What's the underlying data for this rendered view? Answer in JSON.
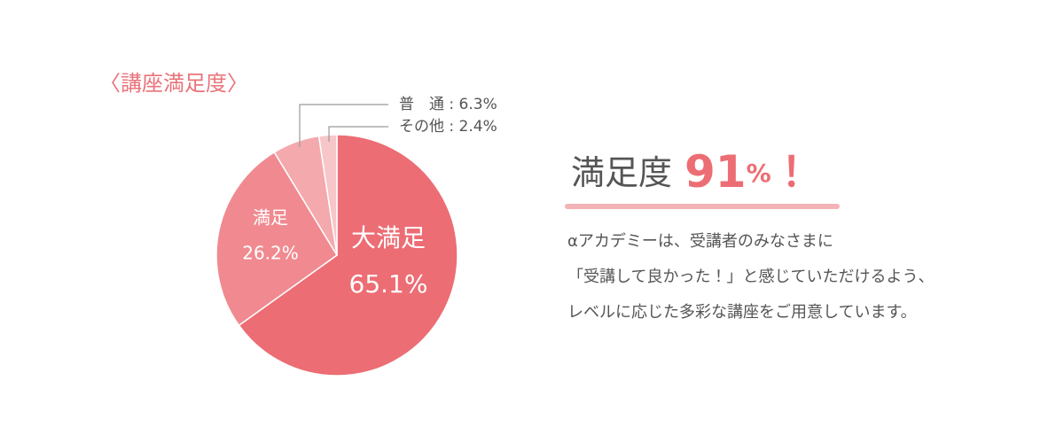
{
  "chart_data": {
    "type": "pie",
    "title": "〈講座満足度〉",
    "categories": [
      "大満足",
      "満足",
      "普　通",
      "その他"
    ],
    "values": [
      65.1,
      26.2,
      6.3,
      2.4
    ],
    "value_labels": [
      "65.1%",
      "26.2%",
      "6.3%",
      "2.4%"
    ],
    "label_separator": ":",
    "colors": [
      "#ec6d74",
      "#f08a90",
      "#f4a9ad",
      "#f7c6c9"
    ]
  },
  "summary": {
    "heading": "満足度",
    "value": 91,
    "unit": "%",
    "exclamation": "！",
    "lines": [
      "αアカデミーは、受講者のみなさまに",
      "「受講して良かった！」と感じていただけるよう、",
      "レベルに応じた多彩な講座をご用意しています。"
    ]
  }
}
